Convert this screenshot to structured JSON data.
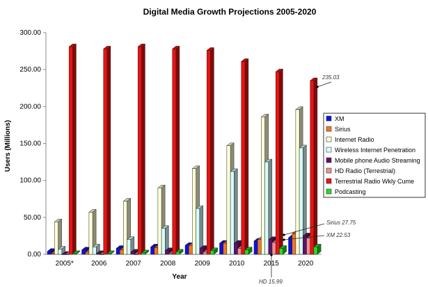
{
  "chart_data": {
    "type": "bar",
    "title": "Digital Media Growth Projections 2005-2020",
    "xlabel": "Year",
    "ylabel": "Users (Millions)",
    "ylim": [
      0,
      300
    ],
    "yticks": [
      "0.00",
      "50.00",
      "100.00",
      "150.00",
      "200.00",
      "250.00",
      "300.00"
    ],
    "categories": [
      "2005*",
      "2006",
      "2007",
      "2008",
      "2009",
      "2010",
      "2015",
      "2020"
    ],
    "legend_position": "right",
    "series": [
      {
        "name": "XM",
        "color": "#1010e0",
        "values": [
          4,
          6,
          8,
          10,
          12,
          15,
          18,
          22.53
        ]
      },
      {
        "name": "Sirius",
        "color": "#f07820",
        "values": [
          1,
          3,
          6,
          9,
          12,
          15,
          20,
          27.75
        ]
      },
      {
        "name": "Internet Radio",
        "color": "#ffffd8",
        "values": [
          44,
          57,
          72,
          90,
          116,
          147,
          186,
          196
        ]
      },
      {
        "name": "Wireless Internet Penetration",
        "color": "#d8ffff",
        "values": [
          7,
          10,
          20,
          35,
          62,
          112,
          125,
          144
        ]
      },
      {
        "name": "Mobile  phone Audio Streaming",
        "color": "#60106a",
        "values": [
          0,
          1,
          3,
          5,
          8,
          15,
          20,
          25
        ]
      },
      {
        "name": "HD Radio (Terrestrial)",
        "color": "#f09090",
        "values": [
          0,
          0,
          0,
          1,
          3,
          8,
          15.99,
          22
        ]
      },
      {
        "name": "Terrestrial Radio Wkly Cume",
        "color": "#ee1010",
        "values": [
          281,
          278,
          281,
          278,
          276,
          261,
          247,
          235.03
        ]
      },
      {
        "name": "Podcasting",
        "color": "#20e020",
        "values": [
          1,
          1,
          2,
          3,
          5,
          6,
          8,
          10
        ]
      }
    ],
    "annotations": [
      "235.03",
      "Sirius 27.75",
      "XM 22.53",
      "HD 15.99"
    ]
  }
}
